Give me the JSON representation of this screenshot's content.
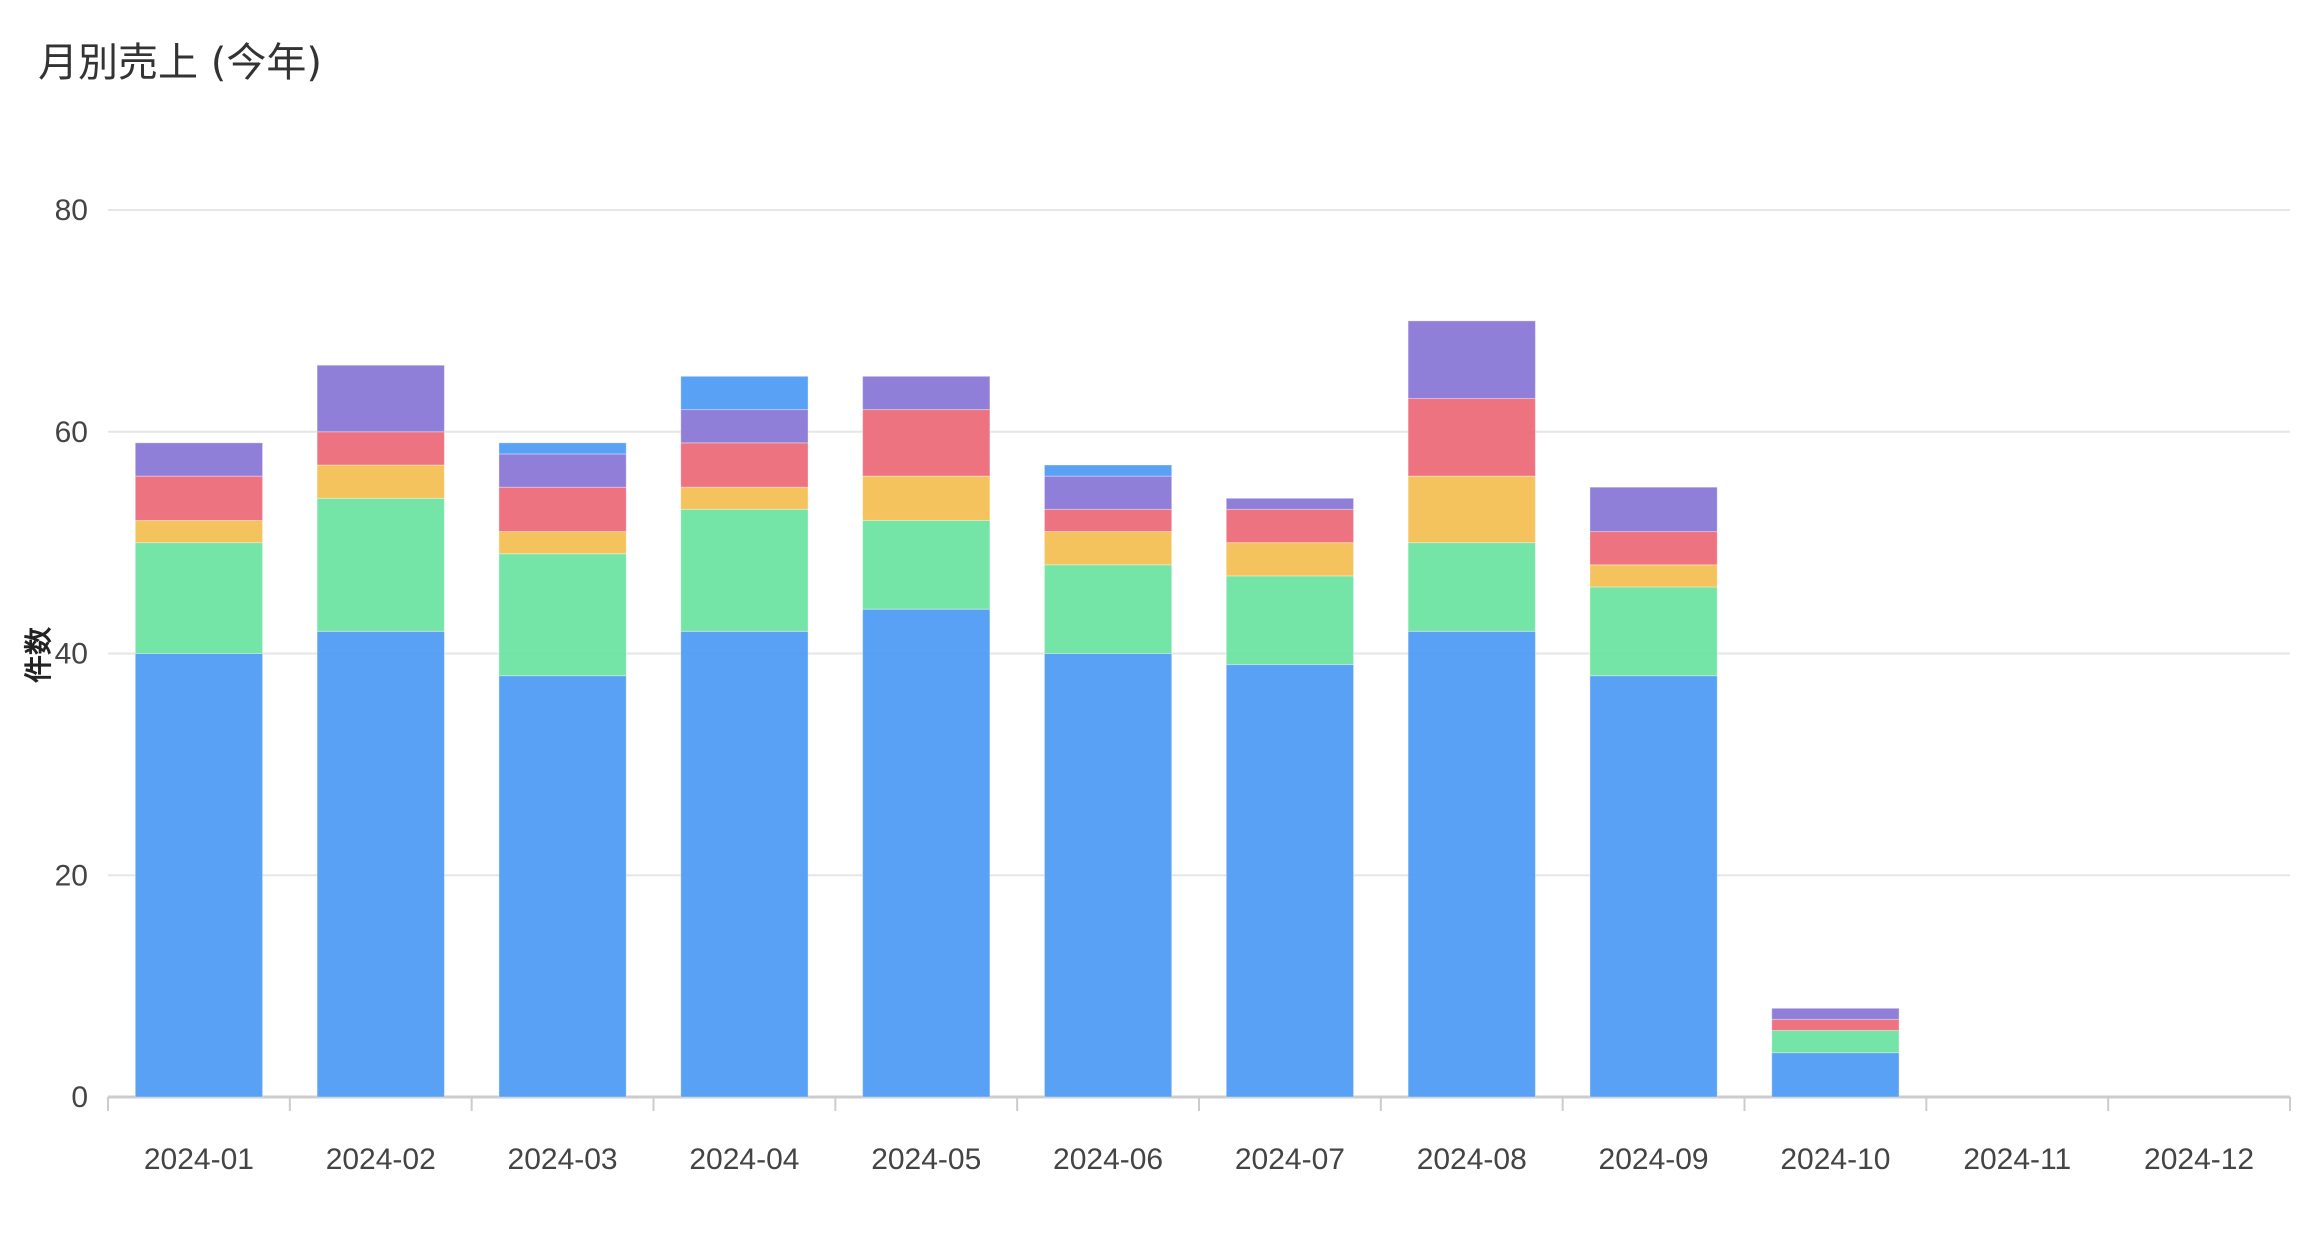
{
  "chart_data": {
    "type": "bar",
    "stacked": true,
    "title": "月別売上 (今年)",
    "ylabel": "件数",
    "xlabel": "",
    "ylim": [
      0,
      80
    ],
    "yticks": [
      0,
      20,
      40,
      60,
      80
    ],
    "grid": true,
    "categories": [
      "2024-01",
      "2024-02",
      "2024-03",
      "2024-04",
      "2024-05",
      "2024-06",
      "2024-07",
      "2024-08",
      "2024-09",
      "2024-10",
      "2024-11",
      "2024-12"
    ],
    "series": [
      {
        "color": "#4f9cf3",
        "values": [
          40,
          42,
          38,
          42,
          44,
          40,
          39,
          42,
          38,
          4,
          0,
          0
        ]
      },
      {
        "color": "#6ee3a2",
        "values": [
          10,
          12,
          11,
          11,
          8,
          8,
          8,
          8,
          8,
          2,
          0,
          0
        ]
      },
      {
        "color": "#f3c055",
        "values": [
          2,
          3,
          2,
          2,
          4,
          3,
          3,
          6,
          2,
          0,
          0,
          0
        ]
      },
      {
        "color": "#ec6b7a",
        "values": [
          4,
          3,
          4,
          4,
          6,
          2,
          3,
          7,
          3,
          1,
          0,
          0
        ]
      },
      {
        "color": "#8a78d6",
        "values": [
          3,
          6,
          3,
          3,
          3,
          3,
          1,
          7,
          4,
          1,
          0,
          0
        ]
      },
      {
        "color": "#4f9cf3",
        "values": [
          0,
          0,
          1,
          3,
          0,
          1,
          0,
          0,
          0,
          0,
          0,
          0
        ]
      }
    ]
  }
}
